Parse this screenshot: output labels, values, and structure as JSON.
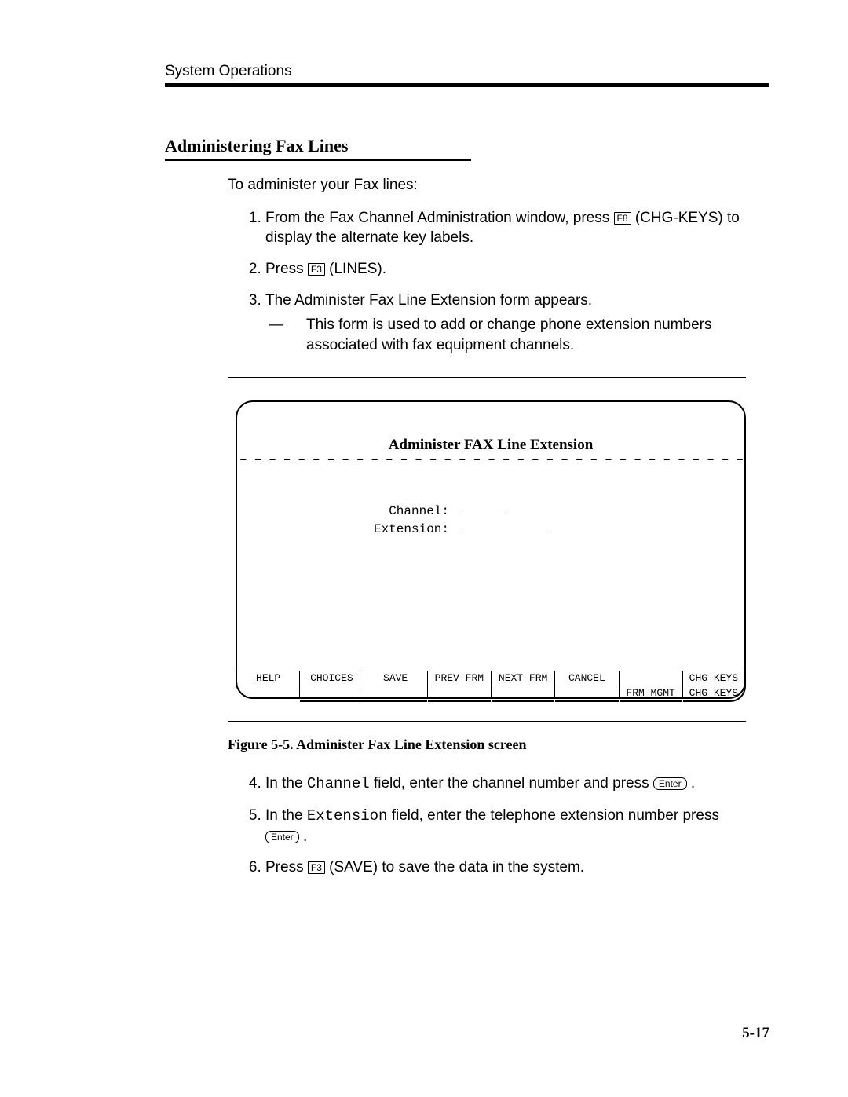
{
  "header": {
    "chapter": "System Operations"
  },
  "section": {
    "title": "Administering Fax Lines",
    "intro": "To administer your Fax lines:"
  },
  "steps_a": {
    "s1_a": "From the Fax Channel Administration window, press ",
    "s1_key": "F8",
    "s1_b": " (CHG-KEYS) to display the alternate key labels.",
    "s2_a": "Press ",
    "s2_key": "F3",
    "s2_b": " (LINES).",
    "s3": "The Administer Fax Line Extension form appears.",
    "s3_note_dash": "—",
    "s3_note": "This form is used to add or change phone extension numbers associated with fax equipment channels."
  },
  "terminal": {
    "title": "Administer FAX Line Extension",
    "dashes": "-----------------------------------",
    "field1": "Channel:",
    "field2": "Extension:",
    "blank1_width": 54,
    "blank2_width": 110,
    "fkeys": [
      {
        "top": "HELP",
        "bot": ""
      },
      {
        "top": "CHOICES",
        "bot": ""
      },
      {
        "top": "SAVE",
        "bot": ""
      },
      {
        "top": "PREV-FRM",
        "bot": ""
      },
      {
        "top": "NEXT-FRM",
        "bot": ""
      },
      {
        "top": "CANCEL",
        "bot": ""
      },
      {
        "top": "",
        "bot": "FRM-MGMT"
      },
      {
        "top": "CHG-KEYS",
        "bot": "CHG-KEYS"
      }
    ]
  },
  "figure": {
    "caption": "Figure 5-5.  Administer Fax Line Extension screen"
  },
  "steps_b": {
    "s4_a": "In the ",
    "s4_mono": "Channel",
    "s4_b": " field, enter the channel number and press ",
    "s4_key": "Enter",
    "s4_c": " .",
    "s5_a": "In the ",
    "s5_mono": "Extension",
    "s5_b": " field, enter the telephone extension number press ",
    "s5_key": "Enter",
    "s5_c": " .",
    "s6_a": "Press ",
    "s6_key": "F3",
    "s6_b": " (SAVE) to save the data in the system."
  },
  "page_number": "5-17"
}
